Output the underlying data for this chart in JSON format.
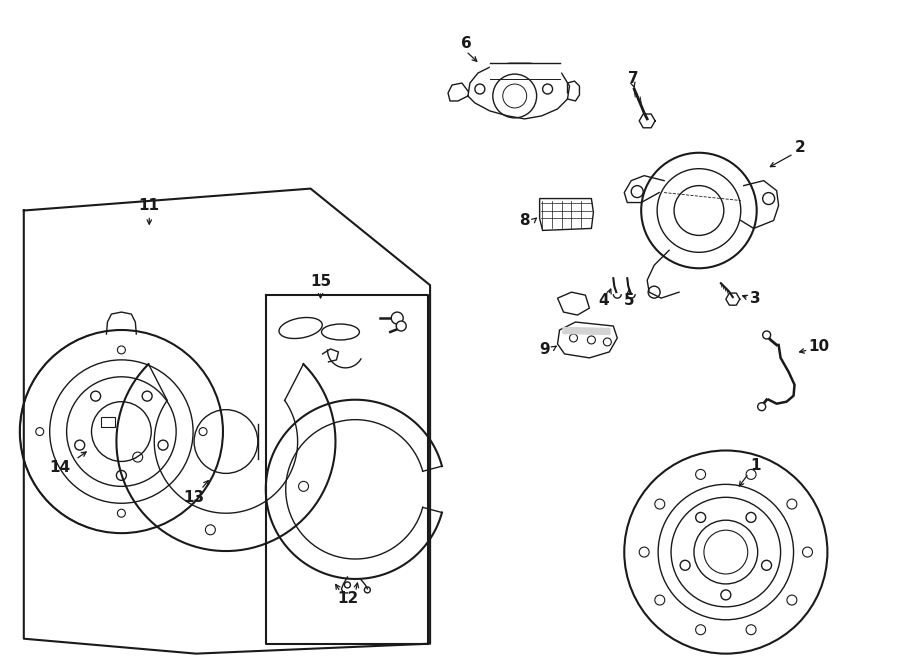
{
  "bg_color": "#ffffff",
  "line_color": "#1a1a1a",
  "lw": 1.0,
  "tlw": 1.5,
  "figsize": [
    9.0,
    6.61
  ],
  "dpi": 100
}
